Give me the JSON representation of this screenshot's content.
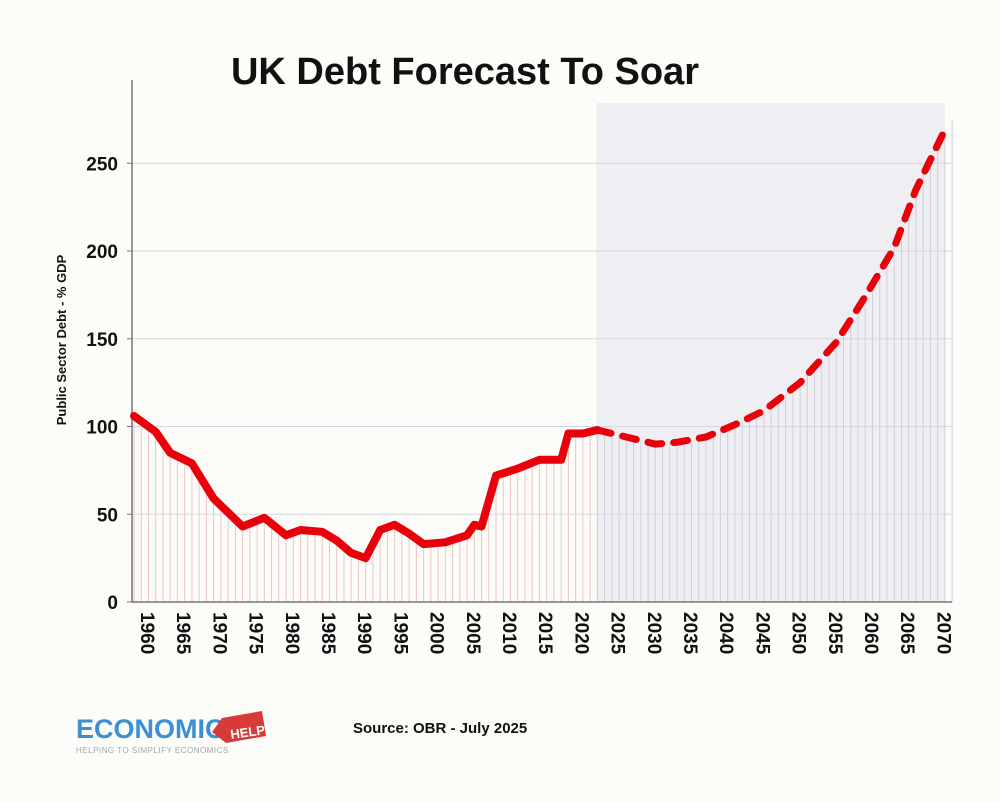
{
  "chart_data": {
    "type": "line",
    "title": "UK Debt Forecast To Soar",
    "xlabel": "",
    "ylabel": "Public Sector Debt - % GDP",
    "xlim": [
      1960,
      2073
    ],
    "ylim": [
      0,
      300
    ],
    "x_ticks": [
      1960,
      1965,
      1970,
      1975,
      1980,
      1985,
      1990,
      1995,
      2000,
      2005,
      2010,
      2015,
      2020,
      2025,
      2030,
      2035,
      2040,
      2045,
      2050,
      2055,
      2060,
      2065,
      2070
    ],
    "y_ticks": [
      0,
      50,
      100,
      150,
      200,
      250
    ],
    "grid": "horizontal",
    "forecast_shading": {
      "from": 2024,
      "to": 2072,
      "color": "#efeff3"
    },
    "series": [
      {
        "style": "solid",
        "color": "#e8000b",
        "x": [
          1960,
          1963,
          1965,
          1968,
          1971,
          1973,
          1975,
          1978,
          1981,
          1983,
          1986,
          1988,
          1990,
          1992,
          1994,
          1996,
          1998,
          2000,
          2003,
          2006,
          2007,
          2008,
          2010,
          2013,
          2016,
          2019,
          2020,
          2022,
          2024
        ],
        "y": [
          106,
          97,
          85,
          79,
          59,
          51,
          43,
          48,
          38,
          41,
          40,
          35,
          28,
          25,
          41,
          44,
          39,
          33,
          34,
          38,
          44,
          43,
          72,
          76,
          81,
          81,
          96,
          96,
          98
        ]
      },
      {
        "style": "dashed",
        "color": "#e8000b",
        "x": [
          2024,
          2028,
          2032,
          2035,
          2039,
          2043,
          2047,
          2052,
          2057,
          2061,
          2065,
          2068,
          2072
        ],
        "y": [
          98,
          94,
          90,
          91,
          94,
          101,
          109,
          125,
          148,
          174,
          202,
          235,
          269
        ]
      }
    ]
  },
  "source": "Source: OBR - July 2025",
  "logo": {
    "name": "ECONOMICS",
    "tag": "HELP",
    "tagline": "HELPING TO SIMPLIFY ECONOMICS"
  }
}
